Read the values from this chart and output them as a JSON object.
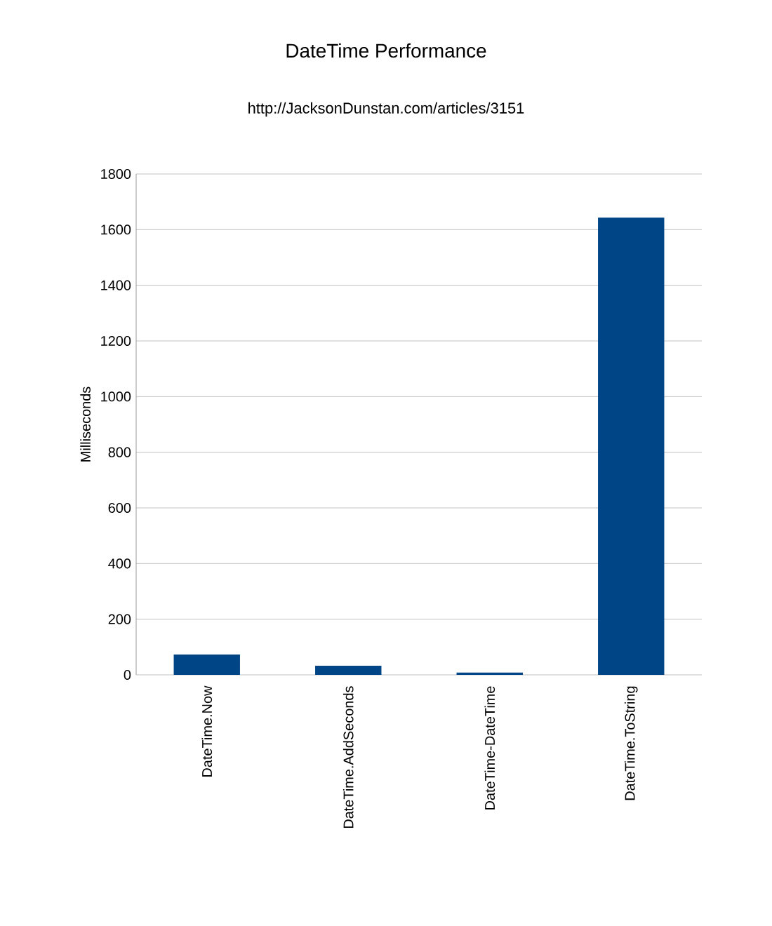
{
  "chart_data": {
    "type": "bar",
    "title": "DateTime Performance",
    "subtitle": "http://JacksonDunstan.com/articles/3151",
    "ylabel": "Milliseconds",
    "categories": [
      "DateTime.Now",
      "DateTime.AddSeconds",
      "DateTime-DateTime",
      "DateTime.ToString"
    ],
    "values": [
      70,
      30,
      5,
      1640
    ],
    "color": "#004586",
    "ylim": [
      0,
      1800
    ],
    "yticks": [
      0,
      200,
      400,
      600,
      800,
      1000,
      1200,
      1400,
      1600,
      1800
    ],
    "grid": "y"
  }
}
